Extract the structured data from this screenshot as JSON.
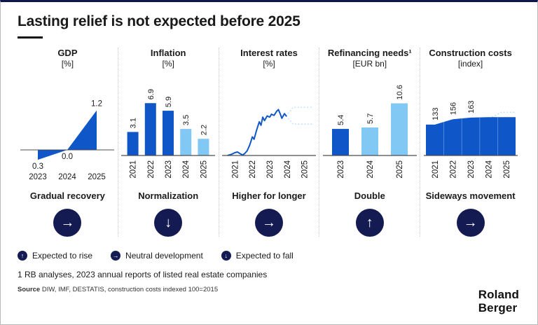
{
  "page": {
    "title": "Lasting relief is not expected before 2025",
    "footnote": "1 RB analyses, 2023 annual reports of listed real estate companies",
    "source_label": "Source",
    "source_text": "DIW, IMF, DESTATIS, construction costs indexed 100=2015",
    "logo_line1": "Roland",
    "logo_line2": "Berger"
  },
  "colors": {
    "dark_blue": "#0f57c9",
    "light_blue": "#82c8f5",
    "fan_blue": "#a3d7f8",
    "navy": "#141a52",
    "axis": "#4d4d4d",
    "text": "#1a1a1a"
  },
  "icon_glyphs": {
    "arrow-right": "→",
    "arrow-up": "↑",
    "arrow-down": "↓"
  },
  "panels": [
    {
      "title": "GDP",
      "unit": "[%]",
      "caption": "Gradual recovery",
      "trend": "arrow-right"
    },
    {
      "title": "Inflation",
      "unit": "[%]",
      "caption": "Normalization",
      "trend": "arrow-down"
    },
    {
      "title": "Interest rates",
      "unit": "[%]",
      "caption": "Higher for longer",
      "trend": "arrow-right"
    },
    {
      "title": "Refinancing needs¹",
      "unit": "[EUR bn]",
      "caption": "Double",
      "trend": "arrow-up"
    },
    {
      "title": "Construction costs",
      "unit": "[index]",
      "caption": "Sideways movement",
      "trend": "arrow-right"
    }
  ],
  "legend": [
    {
      "icon": "arrow-up",
      "label": "Expected to rise"
    },
    {
      "icon": "arrow-right",
      "label": "Neutral development"
    },
    {
      "icon": "arrow-down",
      "label": "Expected to fall"
    }
  ],
  "chart_data": [
    {
      "type": "area_signed",
      "title": "GDP",
      "unit": "%",
      "categories": [
        "2023",
        "2024",
        "2025"
      ],
      "values": [
        -0.3,
        0.0,
        1.2
      ],
      "value_labels": [
        "0.3",
        "0.0",
        "1.2"
      ],
      "ylim": [
        -0.5,
        1.5
      ],
      "x_label_rotated": false
    },
    {
      "type": "bar",
      "title": "Inflation",
      "unit": "%",
      "categories": [
        "2021",
        "2022",
        "2023",
        "2024",
        "2025"
      ],
      "values": [
        3.1,
        6.9,
        5.9,
        3.5,
        2.2
      ],
      "bar_colors": [
        "dark",
        "dark",
        "dark",
        "light",
        "light"
      ],
      "ylim": [
        0,
        7.2
      ],
      "x_label_rotated": true
    },
    {
      "type": "line_fan",
      "title": "Interest rates",
      "unit": "%",
      "categories": [
        "2021",
        "2022",
        "2023",
        "2024",
        "2025"
      ],
      "x": [
        0.1,
        0.3,
        0.5,
        0.65,
        0.8,
        0.95,
        1.05,
        1.2,
        1.35,
        1.5,
        1.6,
        1.75,
        1.9,
        2.0,
        2.1,
        2.2,
        2.35,
        2.5,
        2.6,
        2.75,
        2.9,
        3.0,
        3.1,
        3.2,
        3.35,
        3.45
      ],
      "values": [
        0.02,
        0.1,
        0.25,
        0.3,
        0.15,
        0.05,
        0.15,
        0.4,
        0.9,
        1.6,
        1.4,
        2.2,
        2.9,
        2.6,
        3.3,
        3.0,
        3.4,
        3.3,
        3.55,
        3.45,
        3.8,
        3.95,
        3.6,
        3.2,
        3.6,
        3.4
      ],
      "projection_upper": {
        "x": [
          3.45,
          3.85,
          4.95
        ],
        "values": [
          3.4,
          4.15,
          4.15
        ]
      },
      "projection_lower": {
        "x": [
          3.45,
          3.85,
          4.95
        ],
        "values": [
          3.4,
          2.7,
          2.7
        ]
      },
      "ylim": [
        0,
        4.7
      ],
      "x_label_rotated": true
    },
    {
      "type": "bar",
      "title": "Refinancing needs",
      "unit": "EUR bn",
      "categories": [
        "2023",
        "2024",
        "2025"
      ],
      "values": [
        5.4,
        5.7,
        10.6
      ],
      "bar_colors": [
        "dark",
        "light",
        "light"
      ],
      "ylim": [
        0,
        11.1
      ],
      "x_label_rotated": true
    },
    {
      "type": "area_fan",
      "title": "Construction costs",
      "unit": "index (100=2015)",
      "categories": [
        "2021",
        "2022",
        "2023",
        "2024",
        "2025"
      ],
      "values": [
        133,
        156,
        163,
        165,
        165
      ],
      "value_labels": [
        "133",
        "156",
        "163"
      ],
      "projection_upper": {
        "x": [
          3.7,
          4.2,
          4.95
        ],
        "values": [
          165,
          186,
          186
        ]
      },
      "projection_lower": {
        "x": [
          3.7,
          4.2,
          4.95
        ],
        "values": [
          165,
          148,
          148
        ]
      },
      "ylim": [
        0,
        235
      ],
      "x_label_rotated": true
    }
  ]
}
